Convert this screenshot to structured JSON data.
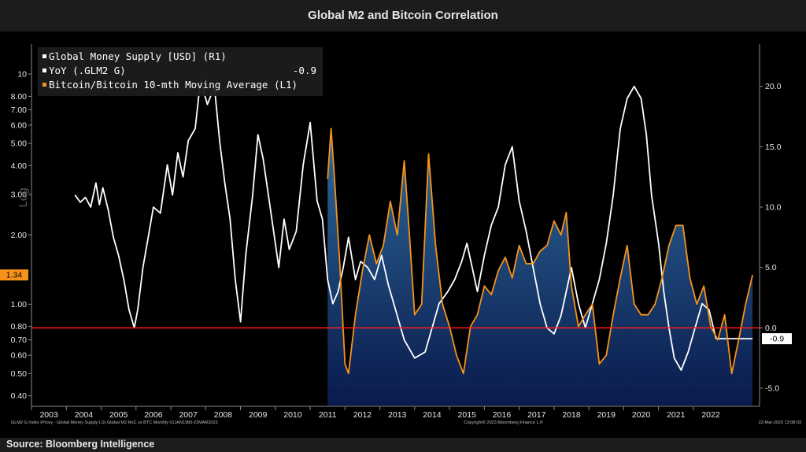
{
  "title": "Global M2 and Bitcoin Correlation",
  "source": "Source: Bloomberg Intelligence",
  "footer_left": "GLM2 G Index (Proxy - Global Money Supply LS) Global M2 RoC vs BTC  Monthly 01JAN1980-22MAR2023",
  "footer_center": "Copyright© 2023 Bloomberg Finance L.P.",
  "footer_right": "22-Mar-2023 13:08:03",
  "chart_data": {
    "type": "line",
    "title": "Global M2 and Bitcoin Correlation",
    "left_axis_label": "Log",
    "x_ticks": [
      "2003",
      "2004",
      "2005",
      "2006",
      "2007",
      "2008",
      "2009",
      "2010",
      "2011",
      "2012",
      "2013",
      "2014",
      "2015",
      "2016",
      "2017",
      "2018",
      "2019",
      "2020",
      "2021",
      "2022"
    ],
    "left_axis": {
      "scale": "log",
      "ticks": [
        "0.40",
        "0.50",
        "0.60",
        "0.70",
        "0.80",
        "1.00",
        "2.00",
        "3.00",
        "4.00",
        "5.00",
        "6.00",
        "7.00",
        "8.00",
        "10"
      ],
      "current_value": "1.34"
    },
    "right_axis": {
      "ticks": [
        "-5.0",
        "0.0",
        "5.0",
        "10.0",
        "15.0",
        "20.0"
      ],
      "current_value": "-0.9",
      "ylim": [
        -6.5,
        23.5
      ]
    },
    "reference_line": {
      "axis": "right",
      "value": 0.0,
      "color": "#ff1a1a"
    },
    "legend": [
      {
        "label": "Global Money Supply [USD] (R1)",
        "color": "#ffffff",
        "value": ""
      },
      {
        "label": "YoY (.GLM2 G)",
        "color": "#ffffff",
        "value": "-0.9"
      },
      {
        "label": "Bitcoin/Bitcoin 10-mth Moving Average (L1)",
        "color": "#f7931a",
        "value": ""
      }
    ],
    "series": [
      {
        "name": "YoY (.GLM2 G)",
        "axis": "right",
        "color": "#ffffff",
        "x": [
          2003.75,
          2003.9,
          2004.05,
          2004.2,
          2004.35,
          2004.45,
          2004.55,
          2004.7,
          2004.85,
          2005.0,
          2005.15,
          2005.3,
          2005.45,
          2005.55,
          2005.7,
          2005.85,
          2006.0,
          2006.2,
          2006.4,
          2006.55,
          2006.7,
          2006.85,
          2007.0,
          2007.2,
          2007.35,
          2007.55,
          2007.75,
          2007.9,
          2008.05,
          2008.2,
          2008.35,
          2008.5,
          2008.65,
          2008.85,
          2009.0,
          2009.15,
          2009.3,
          2009.45,
          2009.6,
          2009.75,
          2009.9,
          2010.1,
          2010.3,
          2010.5,
          2010.7,
          2010.85,
          2011.0,
          2011.15,
          2011.3,
          2011.45,
          2011.6,
          2011.8,
          2011.95,
          2012.15,
          2012.35,
          2012.55,
          2012.75,
          2012.95,
          2013.2,
          2013.5,
          2013.8,
          2014.0,
          2014.2,
          2014.45,
          2014.65,
          2014.85,
          2015.0,
          2015.15,
          2015.3,
          2015.5,
          2015.7,
          2015.9,
          2016.1,
          2016.3,
          2016.5,
          2016.7,
          2016.9,
          2017.1,
          2017.3,
          2017.5,
          2017.7,
          2017.85,
          2018.0,
          2018.2,
          2018.4,
          2018.6,
          2018.8,
          2019.0,
          2019.2,
          2019.4,
          2019.6,
          2019.8,
          2020.0,
          2020.15,
          2020.3,
          2020.5,
          2020.65,
          2020.8,
          2020.95,
          2021.15,
          2021.35,
          2021.55,
          2021.75,
          2021.95,
          2022.15,
          2022.35,
          2022.55,
          2022.75,
          2022.95,
          2023.1,
          2023.2
        ],
        "values": [
          11.0,
          10.4,
          10.8,
          10.0,
          12.0,
          10.2,
          11.6,
          9.8,
          7.5,
          6.0,
          4.0,
          1.5,
          0.0,
          1.5,
          5.0,
          7.5,
          10.0,
          9.5,
          13.5,
          11.0,
          14.5,
          12.5,
          15.5,
          16.5,
          20.5,
          18.5,
          20.0,
          15.5,
          12.0,
          9.0,
          4.0,
          0.5,
          6.0,
          11.0,
          16.0,
          14.0,
          11.0,
          8.0,
          5.0,
          9.0,
          6.5,
          8.0,
          13.5,
          17.0,
          10.5,
          9.0,
          4.0,
          2.0,
          3.0,
          5.0,
          7.5,
          4.0,
          5.5,
          5.0,
          4.0,
          6.0,
          3.5,
          1.5,
          -1.0,
          -2.5,
          -2.0,
          0.0,
          2.0,
          3.0,
          4.0,
          5.5,
          7.0,
          5.0,
          3.0,
          6.0,
          8.5,
          10.0,
          13.5,
          15.0,
          10.5,
          8.0,
          5.0,
          2.0,
          0.0,
          -0.5,
          1.0,
          3.0,
          5.0,
          2.0,
          0.0,
          2.0,
          4.0,
          7.0,
          11.0,
          16.5,
          19.0,
          20.0,
          19.0,
          16.0,
          11.0,
          7.0,
          3.0,
          0.0,
          -2.5,
          -3.5,
          -2.0,
          0.0,
          2.0,
          1.5,
          -0.9,
          -0.9,
          -0.9,
          -0.9,
          -0.9,
          -0.9,
          -0.9
        ]
      },
      {
        "name": "Bitcoin/Bitcoin 10-mth Moving Average (L1)",
        "axis": "left",
        "color": "#f7931a",
        "fill": "area",
        "x": [
          2011.0,
          2011.1,
          2011.2,
          2011.35,
          2011.5,
          2011.6,
          2011.8,
          2012.0,
          2012.2,
          2012.4,
          2012.6,
          2012.8,
          2013.0,
          2013.2,
          2013.35,
          2013.5,
          2013.7,
          2013.9,
          2014.1,
          2014.3,
          2014.5,
          2014.7,
          2014.9,
          2015.1,
          2015.3,
          2015.5,
          2015.7,
          2015.9,
          2016.1,
          2016.3,
          2016.5,
          2016.7,
          2016.9,
          2017.1,
          2017.3,
          2017.5,
          2017.7,
          2017.85,
          2018.0,
          2018.2,
          2018.4,
          2018.6,
          2018.8,
          2019.0,
          2019.2,
          2019.4,
          2019.6,
          2019.8,
          2020.0,
          2020.2,
          2020.4,
          2020.6,
          2020.8,
          2021.0,
          2021.2,
          2021.4,
          2021.6,
          2021.8,
          2022.0,
          2022.2,
          2022.4,
          2022.6,
          2022.8,
          2023.0,
          2023.2
        ],
        "values": [
          3.5,
          5.8,
          3.5,
          1.5,
          0.55,
          0.5,
          0.9,
          1.4,
          2.0,
          1.5,
          1.8,
          2.8,
          2.0,
          4.2,
          2.0,
          0.9,
          1.0,
          4.5,
          1.8,
          1.0,
          0.8,
          0.6,
          0.5,
          0.8,
          0.9,
          1.2,
          1.1,
          1.4,
          1.6,
          1.3,
          1.8,
          1.5,
          1.5,
          1.7,
          1.8,
          2.3,
          2.0,
          2.5,
          1.2,
          0.8,
          0.9,
          1.0,
          0.55,
          0.6,
          0.9,
          1.3,
          1.8,
          1.0,
          0.9,
          0.9,
          1.0,
          1.3,
          1.8,
          2.2,
          2.2,
          1.3,
          1.0,
          1.2,
          0.8,
          0.7,
          0.9,
          0.5,
          0.7,
          1.0,
          1.34
        ]
      }
    ]
  }
}
